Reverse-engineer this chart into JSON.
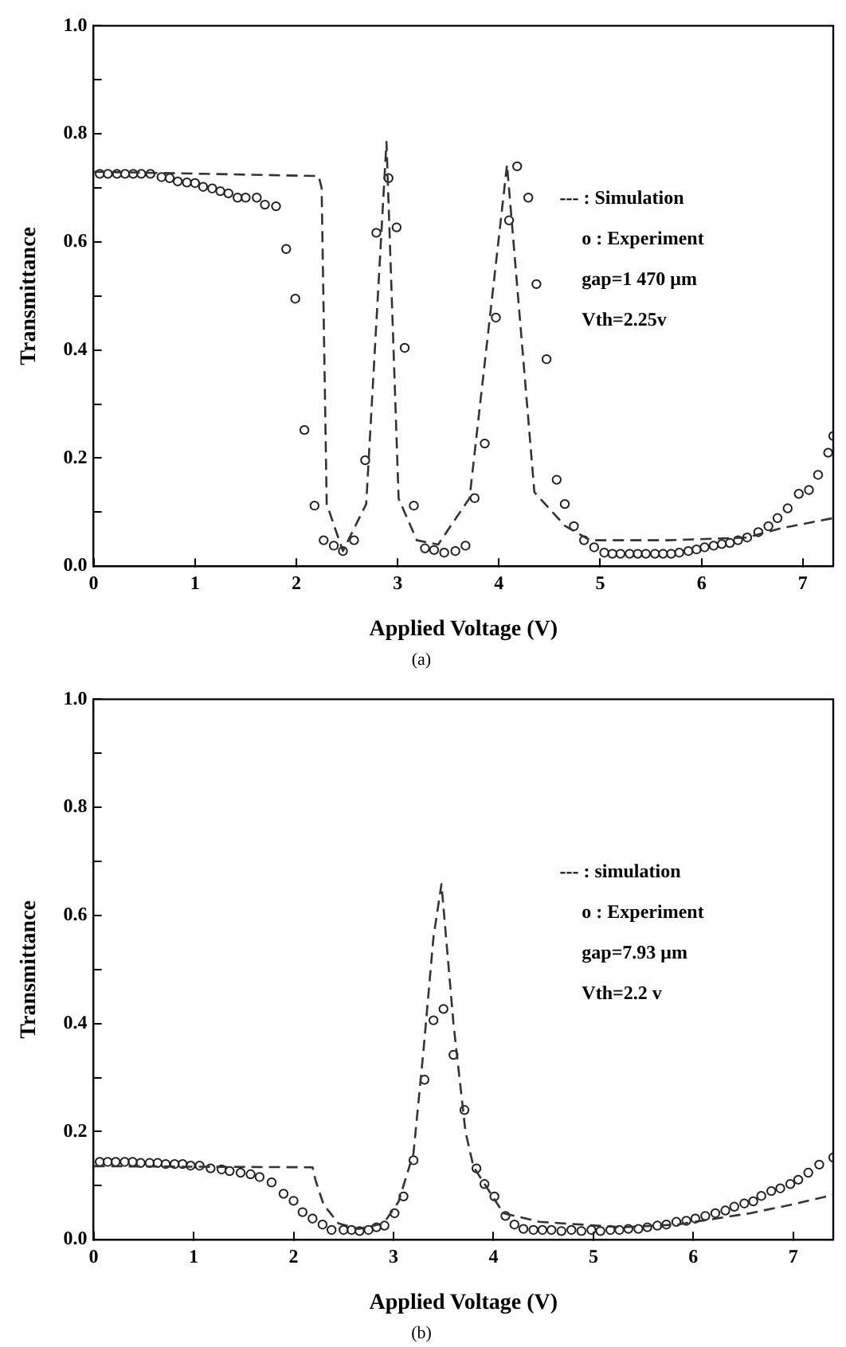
{
  "chart_data": [
    {
      "type": "scatter",
      "subtitle": "(a)",
      "xlabel": "Applied Voltage (V)",
      "ylabel": "Transmittance",
      "xlim": [
        0,
        7.3
      ],
      "xticks": [
        0,
        1,
        2,
        3,
        4,
        5,
        6,
        7
      ],
      "ylim": [
        0,
        1
      ],
      "yticks": [
        {
          "value": 0,
          "label": "0.0"
        },
        {
          "value": 0.1,
          "label": null
        },
        {
          "value": 0.2,
          "label": "0.2"
        },
        {
          "value": 0.3,
          "label": null
        },
        {
          "value": 0.4,
          "label": "0.4"
        },
        {
          "value": 0.5,
          "label": null
        },
        {
          "value": 0.6,
          "label": "0.6"
        },
        {
          "value": 0.7,
          "label": null
        },
        {
          "value": 0.8,
          "label": "0.8"
        },
        {
          "value": 0.9,
          "label": null
        },
        {
          "value": 1,
          "label": "1.0"
        }
      ],
      "grid": false,
      "legend": false,
      "annotations": [
        "--- : Simulation",
        "o : Experiment",
        "gap=1 470 μm",
        "Vth=2.25v"
      ],
      "series": [
        {
          "type": "line",
          "line_style": "dashed",
          "marker": "none",
          "color": "#333333",
          "x": [
            0,
            2.22,
            2.25,
            2.3,
            2.46,
            2.69,
            2.89,
            3.01,
            3.19,
            3.4,
            3.71,
            4.08,
            4.35,
            4.65,
            4.9,
            5.67,
            6.45,
            6.78,
            7.3
          ],
          "values": [
            0.73,
            0.722,
            0.7,
            0.115,
            0.028,
            0.115,
            0.785,
            0.125,
            0.048,
            0.04,
            0.126,
            0.743,
            0.137,
            0.075,
            0.048,
            0.048,
            0.053,
            0.07,
            0.089
          ]
        },
        {
          "type": "scatter",
          "marker": "circle",
          "color": "#222222",
          "x": [
            0.06,
            0.14,
            0.23,
            0.31,
            0.39,
            0.47,
            0.56,
            0.67,
            0.75,
            0.83,
            0.92,
            1.0,
            1.08,
            1.17,
            1.25,
            1.33,
            1.42,
            1.5,
            1.61,
            1.69,
            1.8,
            1.9,
            1.99,
            2.08,
            2.18,
            2.27,
            2.37,
            2.46,
            2.57,
            2.68,
            2.79,
            2.91,
            2.99,
            3.07,
            3.16,
            3.27,
            3.36,
            3.46,
            3.57,
            3.67,
            3.76,
            3.86,
            3.97,
            4.1,
            4.18,
            4.29,
            4.37,
            4.47,
            4.57,
            4.65,
            4.74,
            4.84,
            4.94,
            5.04,
            5.12,
            5.2,
            5.29,
            5.37,
            5.45,
            5.54,
            5.62,
            5.7,
            5.78,
            5.87,
            5.95,
            6.03,
            6.12,
            6.2,
            6.28,
            6.36,
            6.45,
            6.56,
            6.66,
            6.75,
            6.85,
            6.96,
            7.06,
            7.15,
            7.25,
            7.3
          ],
          "values": [
            0.726,
            0.726,
            0.726,
            0.726,
            0.726,
            0.726,
            0.726,
            0.72,
            0.718,
            0.712,
            0.71,
            0.709,
            0.702,
            0.699,
            0.694,
            0.69,
            0.682,
            0.682,
            0.682,
            0.669,
            0.666,
            0.587,
            0.495,
            0.252,
            0.112,
            0.048,
            0.038,
            0.028,
            0.048,
            0.196,
            0.617,
            0.718,
            0.627,
            0.404,
            0.112,
            0.033,
            0.03,
            0.025,
            0.028,
            0.038,
            0.126,
            0.227,
            0.46,
            0.64,
            0.74,
            0.682,
            0.522,
            0.383,
            0.16,
            0.115,
            0.074,
            0.048,
            0.035,
            0.025,
            0.023,
            0.023,
            0.023,
            0.023,
            0.023,
            0.023,
            0.023,
            0.023,
            0.025,
            0.028,
            0.031,
            0.035,
            0.038,
            0.041,
            0.043,
            0.048,
            0.053,
            0.063,
            0.074,
            0.089,
            0.107,
            0.134,
            0.141,
            0.169,
            0.21,
            0.241
          ]
        }
      ]
    },
    {
      "type": "scatter",
      "subtitle": "(b)",
      "xlabel": "Applied Voltage (V)",
      "ylabel": "Transmittance",
      "xlim": [
        0,
        7.4
      ],
      "xticks": [
        0,
        1,
        2,
        3,
        4,
        5,
        6,
        7
      ],
      "ylim": [
        0,
        1
      ],
      "yticks": [
        {
          "value": 0,
          "label": "0.0"
        },
        {
          "value": 0.1,
          "label": null
        },
        {
          "value": 0.2,
          "label": "0.2"
        },
        {
          "value": 0.3,
          "label": null
        },
        {
          "value": 0.4,
          "label": "0.4"
        },
        {
          "value": 0.5,
          "label": null
        },
        {
          "value": 0.6,
          "label": "0.6"
        },
        {
          "value": 0.7,
          "label": null
        },
        {
          "value": 0.8,
          "label": "0.8"
        },
        {
          "value": 0.9,
          "label": null
        },
        {
          "value": 1,
          "label": "1.0"
        }
      ],
      "grid": false,
      "legend": false,
      "annotations": [
        "--- : simulation",
        "o : Experiment",
        "gap=7.93 μm",
        "Vth=2.2 v"
      ],
      "series": [
        {
          "type": "line",
          "line_style": "dashed",
          "marker": "none",
          "color": "#333333",
          "x": [
            0,
            2.19,
            2.22,
            2.3,
            2.45,
            2.65,
            2.9,
            3.05,
            3.2,
            3.3,
            3.4,
            3.48,
            3.6,
            3.72,
            3.8,
            4.1,
            4.46,
            5.29,
            5.84,
            6.57,
            6.96,
            7.4
          ],
          "values": [
            0.136,
            0.134,
            0.11,
            0.065,
            0.03,
            0.02,
            0.03,
            0.07,
            0.16,
            0.35,
            0.56,
            0.658,
            0.4,
            0.2,
            0.135,
            0.049,
            0.033,
            0.023,
            0.028,
            0.049,
            0.064,
            0.083
          ]
        },
        {
          "type": "scatter",
          "marker": "circle",
          "color": "#222222",
          "x": [
            0.06,
            0.14,
            0.22,
            0.31,
            0.39,
            0.47,
            0.56,
            0.64,
            0.72,
            0.81,
            0.89,
            0.97,
            1.06,
            1.17,
            1.28,
            1.36,
            1.47,
            1.57,
            1.66,
            1.78,
            1.9,
            2.0,
            2.09,
            2.19,
            2.29,
            2.38,
            2.5,
            2.58,
            2.66,
            2.75,
            2.83,
            2.91,
            3.01,
            3.1,
            3.2,
            3.31,
            3.4,
            3.5,
            3.6,
            3.71,
            3.83,
            3.91,
            4.01,
            4.12,
            4.21,
            4.3,
            4.4,
            4.49,
            4.58,
            4.68,
            4.78,
            4.88,
            4.98,
            5.07,
            5.17,
            5.26,
            5.35,
            5.45,
            5.54,
            5.64,
            5.73,
            5.83,
            5.93,
            6.02,
            6.12,
            6.22,
            6.32,
            6.41,
            6.51,
            6.6,
            6.68,
            6.78,
            6.87,
            6.97,
            7.05,
            7.15,
            7.26,
            7.4
          ],
          "values": [
            0.144,
            0.144,
            0.144,
            0.144,
            0.144,
            0.142,
            0.142,
            0.142,
            0.14,
            0.14,
            0.14,
            0.137,
            0.137,
            0.132,
            0.13,
            0.127,
            0.124,
            0.121,
            0.116,
            0.106,
            0.085,
            0.072,
            0.051,
            0.039,
            0.028,
            0.018,
            0.018,
            0.018,
            0.016,
            0.018,
            0.023,
            0.026,
            0.049,
            0.08,
            0.147,
            0.296,
            0.406,
            0.427,
            0.342,
            0.24,
            0.132,
            0.103,
            0.08,
            0.044,
            0.028,
            0.02,
            0.018,
            0.018,
            0.018,
            0.016,
            0.018,
            0.016,
            0.018,
            0.016,
            0.018,
            0.018,
            0.02,
            0.02,
            0.023,
            0.026,
            0.028,
            0.033,
            0.035,
            0.039,
            0.044,
            0.049,
            0.054,
            0.061,
            0.067,
            0.071,
            0.081,
            0.09,
            0.095,
            0.103,
            0.111,
            0.124,
            0.139,
            0.152
          ]
        }
      ]
    }
  ]
}
